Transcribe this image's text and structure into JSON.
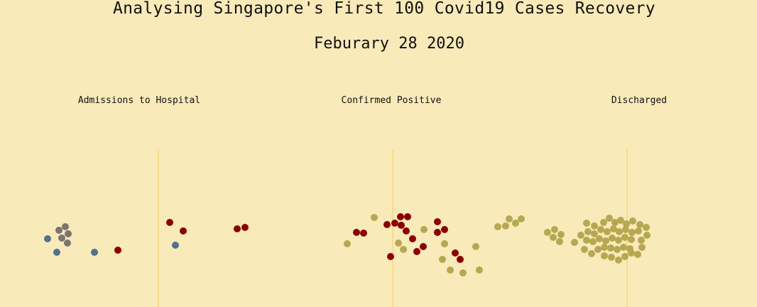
{
  "title": "Analysing Singapore's First 100 Covid19 Cases Recovery",
  "subtitle": "Feburary 28 2020",
  "stages": [
    {
      "label": "Admissions to Hospital"
    },
    {
      "label": "Confirmed Positive"
    },
    {
      "label": "Discharged"
    }
  ],
  "colors": {
    "background": "#f8eab9",
    "divider": "#f4cf5f",
    "hospitalised": "#8b0000",
    "discharged": "#b5a851",
    "grey": "#7d7370",
    "blue": "#50728b"
  }
}
